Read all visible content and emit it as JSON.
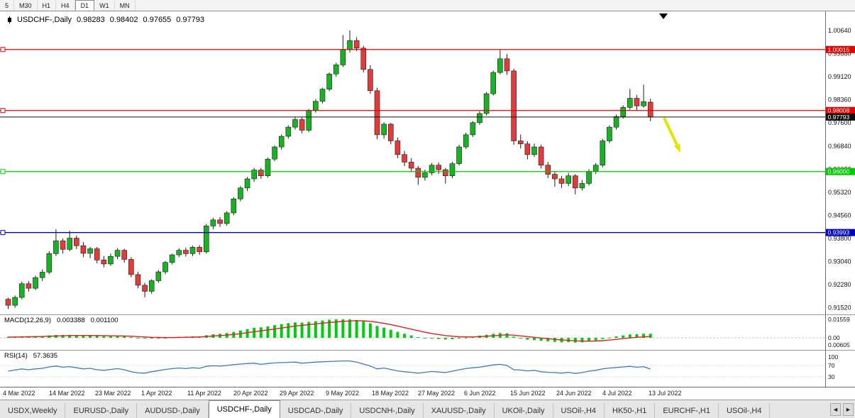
{
  "colors": {
    "candle_up": "#18b224",
    "candle_down": "#e23b3b",
    "candle_outline": "#1c1c1c",
    "macd_hist": "#00cc11",
    "macd_signal": "#dd2222",
    "rsi_line": "#3b7ac2",
    "arrow": "#e3e300",
    "axis_text": "#111111"
  },
  "toolbar": {
    "timeframes": [
      "5",
      "M30",
      "H1",
      "H4",
      "D1",
      "W1",
      "MN"
    ],
    "active_timeframe": "D1"
  },
  "chart": {
    "symbol_title": "USDCHF-,Daily",
    "open": "0.98283",
    "high": "0.98402",
    "low": "0.97655",
    "close": "0.97793",
    "price_axis_labels": [
      "1.00640",
      "0.99880",
      "0.99120",
      "0.98360",
      "0.97600",
      "0.96840",
      "0.96080",
      "0.95320",
      "0.94560",
      "0.93800",
      "0.93040",
      "0.92280",
      "0.91520"
    ],
    "levels": [
      {
        "price": 1.00015,
        "label": "1.00015",
        "color": "#e60000",
        "text_color": "#ffffff",
        "type": "resistance"
      },
      {
        "price": 0.98008,
        "label": "0.98008",
        "color": "#e60000",
        "text_color": "#ffffff",
        "type": "resistance"
      },
      {
        "price": 0.97793,
        "label": "0.97793",
        "color": "#101010",
        "text_color": "#ffffff",
        "type": "current-price"
      },
      {
        "price": 0.96,
        "label": "0.96000",
        "color": "#00cc00",
        "text_color": "#ffffff",
        "type": "support"
      },
      {
        "price": 0.93993,
        "label": "0.93993",
        "color": "#0000cc",
        "text_color": "#ffffff",
        "type": "support"
      }
    ]
  },
  "chart_data": {
    "type": "candlestick",
    "title": "USDCHF-,Daily",
    "symbol": "USDCHF",
    "timeframe": "Daily",
    "ylim": [
      0.9148,
      1.0064
    ],
    "x_axis_dates": [
      "4 Mar 2022",
      "14 Mar 2022",
      "23 Mar 2022",
      "1 Apr 2022",
      "11 Apr 2022",
      "20 Apr 2022",
      "29 Apr 2022",
      "9 May 2022",
      "18 May 2022",
      "27 May 2022",
      "6 Jun 2022",
      "15 Jun 2022",
      "24 Jun 2022",
      "4 Jul 2022",
      "13 Jul 2022"
    ],
    "candles_ohlc": [
      [
        0.918,
        0.9185,
        0.9148,
        0.916
      ],
      [
        0.916,
        0.9192,
        0.9152,
        0.9186
      ],
      [
        0.9186,
        0.9238,
        0.918,
        0.9231
      ],
      [
        0.9231,
        0.924,
        0.9205,
        0.9216
      ],
      [
        0.9216,
        0.9258,
        0.921,
        0.9251
      ],
      [
        0.9251,
        0.9278,
        0.924,
        0.9269
      ],
      [
        0.9269,
        0.9338,
        0.9262,
        0.933
      ],
      [
        0.933,
        0.941,
        0.9322,
        0.9372
      ],
      [
        0.9372,
        0.938,
        0.933,
        0.9344
      ],
      [
        0.9344,
        0.9405,
        0.9338,
        0.9381
      ],
      [
        0.9381,
        0.939,
        0.9345,
        0.9356
      ],
      [
        0.9356,
        0.9368,
        0.9318,
        0.9331
      ],
      [
        0.9331,
        0.9352,
        0.9315,
        0.9346
      ],
      [
        0.9346,
        0.9352,
        0.9298,
        0.9309
      ],
      [
        0.9309,
        0.9322,
        0.9285,
        0.9296
      ],
      [
        0.9296,
        0.933,
        0.929,
        0.9321
      ],
      [
        0.9321,
        0.9348,
        0.9312,
        0.9341
      ],
      [
        0.9341,
        0.9346,
        0.93,
        0.9311
      ],
      [
        0.9311,
        0.9318,
        0.9252,
        0.9261
      ],
      [
        0.9261,
        0.927,
        0.9216,
        0.9226
      ],
      [
        0.9226,
        0.9234,
        0.9186,
        0.9206
      ],
      [
        0.9206,
        0.9246,
        0.9198,
        0.9241
      ],
      [
        0.9241,
        0.9276,
        0.9234,
        0.927
      ],
      [
        0.927,
        0.9306,
        0.9262,
        0.9301
      ],
      [
        0.9301,
        0.933,
        0.9294,
        0.9326
      ],
      [
        0.9326,
        0.9348,
        0.9318,
        0.9341
      ],
      [
        0.9341,
        0.935,
        0.932,
        0.933
      ],
      [
        0.933,
        0.9356,
        0.9322,
        0.9351
      ],
      [
        0.9351,
        0.9358,
        0.9326,
        0.9336
      ],
      [
        0.9336,
        0.9428,
        0.933,
        0.9421
      ],
      [
        0.9421,
        0.9448,
        0.941,
        0.9441
      ],
      [
        0.9441,
        0.945,
        0.9418,
        0.9429
      ],
      [
        0.9429,
        0.947,
        0.9422,
        0.9464
      ],
      [
        0.9464,
        0.9516,
        0.9456,
        0.951
      ],
      [
        0.951,
        0.9552,
        0.9502,
        0.9546
      ],
      [
        0.9546,
        0.9582,
        0.9536,
        0.9576
      ],
      [
        0.9576,
        0.9612,
        0.9566,
        0.9605
      ],
      [
        0.9605,
        0.9612,
        0.9576,
        0.9586
      ],
      [
        0.9586,
        0.9646,
        0.958,
        0.9641
      ],
      [
        0.9641,
        0.9686,
        0.9634,
        0.9681
      ],
      [
        0.9681,
        0.9722,
        0.9672,
        0.9716
      ],
      [
        0.9716,
        0.9752,
        0.9708,
        0.9746
      ],
      [
        0.9746,
        0.9778,
        0.9738,
        0.9771
      ],
      [
        0.9771,
        0.9778,
        0.9726,
        0.9736
      ],
      [
        0.9736,
        0.9806,
        0.973,
        0.9801
      ],
      [
        0.9801,
        0.9838,
        0.9794,
        0.9831
      ],
      [
        0.9831,
        0.9876,
        0.9824,
        0.9871
      ],
      [
        0.9871,
        0.9926,
        0.9864,
        0.9921
      ],
      [
        0.9921,
        0.9958,
        0.9912,
        0.9951
      ],
      [
        0.9951,
        1.0049,
        0.9944,
        1.0001
      ],
      [
        1.0001,
        1.0064,
        0.9992,
        1.0031
      ],
      [
        1.0031,
        1.0042,
        0.9996,
        1.0006
      ],
      [
        1.0006,
        1.0014,
        0.9926,
        0.9936
      ],
      [
        0.9936,
        0.995,
        0.9856,
        0.9866
      ],
      [
        0.9866,
        0.9876,
        0.9706,
        0.9721
      ],
      [
        0.9721,
        0.9762,
        0.9708,
        0.9756
      ],
      [
        0.9756,
        0.976,
        0.969,
        0.9701
      ],
      [
        0.9701,
        0.9712,
        0.9644,
        0.9656
      ],
      [
        0.9656,
        0.9668,
        0.9618,
        0.9631
      ],
      [
        0.9631,
        0.9644,
        0.9598,
        0.9611
      ],
      [
        0.9611,
        0.9618,
        0.9556,
        0.9581
      ],
      [
        0.9581,
        0.9606,
        0.957,
        0.9596
      ],
      [
        0.9596,
        0.9628,
        0.9588,
        0.9621
      ],
      [
        0.9621,
        0.963,
        0.9592,
        0.9606
      ],
      [
        0.9606,
        0.9612,
        0.956,
        0.9586
      ],
      [
        0.9586,
        0.9632,
        0.9578,
        0.9626
      ],
      [
        0.9626,
        0.9688,
        0.962,
        0.9681
      ],
      [
        0.9681,
        0.9728,
        0.9674,
        0.9721
      ],
      [
        0.9721,
        0.9766,
        0.9714,
        0.9761
      ],
      [
        0.9761,
        0.9798,
        0.9754,
        0.9791
      ],
      [
        0.9791,
        0.9862,
        0.9784,
        0.9856
      ],
      [
        0.9856,
        0.9932,
        0.985,
        0.9926
      ],
      [
        0.9926,
        1.0,
        0.992,
        0.9971
      ],
      [
        0.9971,
        0.9986,
        0.9918,
        0.9931
      ],
      [
        0.9931,
        0.9938,
        0.9688,
        0.9701
      ],
      [
        0.9701,
        0.9722,
        0.9676,
        0.9691
      ],
      [
        0.9691,
        0.97,
        0.964,
        0.9656
      ],
      [
        0.9656,
        0.9692,
        0.9648,
        0.9681
      ],
      [
        0.9681,
        0.9688,
        0.961,
        0.9621
      ],
      [
        0.9621,
        0.9632,
        0.9578,
        0.9591
      ],
      [
        0.9591,
        0.96,
        0.955,
        0.9576
      ],
      [
        0.9576,
        0.9586,
        0.9546,
        0.9561
      ],
      [
        0.9561,
        0.9596,
        0.9552,
        0.9586
      ],
      [
        0.9586,
        0.9592,
        0.9525,
        0.9546
      ],
      [
        0.9546,
        0.9572,
        0.9538,
        0.9561
      ],
      [
        0.9561,
        0.9608,
        0.9554,
        0.9601
      ],
      [
        0.9601,
        0.9628,
        0.9592,
        0.9621
      ],
      [
        0.9621,
        0.9708,
        0.9614,
        0.9701
      ],
      [
        0.9701,
        0.9752,
        0.9694,
        0.9746
      ],
      [
        0.9746,
        0.9788,
        0.9738,
        0.9781
      ],
      [
        0.9781,
        0.9818,
        0.9774,
        0.9811
      ],
      [
        0.9811,
        0.9872,
        0.9804,
        0.9841
      ],
      [
        0.9841,
        0.9852,
        0.9801,
        0.9816
      ],
      [
        0.9816,
        0.9886,
        0.981,
        0.983
      ],
      [
        0.98283,
        0.98402,
        0.97655,
        0.97793
      ]
    ],
    "indicators": {
      "macd": {
        "label": "MACD(12,26,9)",
        "main_value": "0.003388",
        "signal_value": "0.001100",
        "axis_labels": [
          "0.01559",
          "0.00",
          "0.00605"
        ],
        "histogram": [
          0.0008,
          0.0009,
          0.0011,
          0.0012,
          0.0013,
          0.0015,
          0.002,
          0.0024,
          0.0024,
          0.0025,
          0.0023,
          0.002,
          0.0019,
          0.0016,
          0.0013,
          0.0012,
          0.0013,
          0.0011,
          0.0006,
          0.0001,
          -0.0004,
          -0.0005,
          -0.0003,
          0.0,
          0.0004,
          0.0008,
          0.001,
          0.0012,
          0.0012,
          0.0022,
          0.003,
          0.0034,
          0.004,
          0.005,
          0.0062,
          0.0074,
          0.0084,
          0.0088,
          0.0096,
          0.0106,
          0.0116,
          0.0124,
          0.013,
          0.0128,
          0.0134,
          0.014,
          0.0146,
          0.0152,
          0.0155,
          0.0156,
          0.0155,
          0.015,
          0.0138,
          0.0122,
          0.01,
          0.0086,
          0.0068,
          0.005,
          0.0034,
          0.002,
          0.0006,
          -0.0002,
          -0.0006,
          -0.001,
          -0.0014,
          -0.0012,
          -0.0006,
          0.0002,
          0.001,
          0.0018,
          0.0026,
          0.0034,
          0.004,
          0.0038,
          0.001,
          -0.0006,
          -0.0016,
          -0.002,
          -0.0026,
          -0.003,
          -0.0034,
          -0.0038,
          -0.0036,
          -0.004,
          -0.0038,
          -0.003,
          -0.0022,
          -0.001,
          0.0002,
          0.0012,
          0.002,
          0.0028,
          0.003,
          0.0034,
          0.0034
        ],
        "signal": [
          0.0006,
          0.0007,
          0.0008,
          0.0009,
          0.001,
          0.0011,
          0.0013,
          0.0015,
          0.0017,
          0.0019,
          0.002,
          0.002,
          0.002,
          0.0019,
          0.0018,
          0.0017,
          0.0016,
          0.0015,
          0.0013,
          0.001,
          0.0007,
          0.0004,
          0.0003,
          0.0002,
          0.0002,
          0.0003,
          0.0005,
          0.0006,
          0.0008,
          0.0011,
          0.0015,
          0.0019,
          0.0023,
          0.0028,
          0.0035,
          0.0043,
          0.0051,
          0.0059,
          0.0066,
          0.0074,
          0.0082,
          0.0091,
          0.0099,
          0.0105,
          0.0111,
          0.0117,
          0.0123,
          0.0129,
          0.0134,
          0.0139,
          0.0142,
          0.0144,
          0.0143,
          0.0139,
          0.0131,
          0.0122,
          0.0111,
          0.0099,
          0.0086,
          0.0073,
          0.006,
          0.0047,
          0.0036,
          0.0027,
          0.0019,
          0.0013,
          0.0009,
          0.0008,
          0.0008,
          0.001,
          0.0013,
          0.0017,
          0.0022,
          0.0025,
          0.0022,
          0.0016,
          0.001,
          0.0004,
          -0.0002,
          -0.0008,
          -0.0013,
          -0.0018,
          -0.0022,
          -0.0025,
          -0.0028,
          -0.0028,
          -0.0027,
          -0.0024,
          -0.0019,
          -0.0013,
          -0.0007,
          -0.0001,
          0.0004,
          0.0008,
          0.0011
        ]
      },
      "rsi": {
        "label": "RSI(14)",
        "value": "57.3635",
        "axis_labels": [
          "100",
          "70",
          "30"
        ],
        "levels": [
          100,
          70,
          30
        ],
        "series": [
          50,
          54,
          58,
          55,
          58,
          60,
          65,
          68,
          64,
          66,
          62,
          58,
          60,
          55,
          53,
          56,
          59,
          55,
          48,
          44,
          43,
          48,
          52,
          56,
          59,
          61,
          59,
          62,
          60,
          67,
          69,
          68,
          70,
          73,
          75,
          77,
          78,
          74,
          77,
          79,
          80,
          81,
          82,
          78,
          80,
          82,
          83,
          84,
          85,
          86,
          86,
          82,
          75,
          68,
          58,
          61,
          56,
          51,
          48,
          46,
          43,
          46,
          49,
          47,
          45,
          50,
          55,
          59,
          62,
          64,
          68,
          72,
          74,
          70,
          55,
          54,
          51,
          53,
          48,
          46,
          45,
          43,
          46,
          42,
          45,
          50,
          53,
          58,
          61,
          63,
          65,
          67,
          64,
          66,
          57.4
        ]
      }
    }
  },
  "tabs": {
    "scroll_left_icon": "◄",
    "scroll_right_icon": "►",
    "items": [
      {
        "label": "USDX,Weekly",
        "active": false
      },
      {
        "label": "EURUSD-,Daily",
        "active": false
      },
      {
        "label": "AUDUSD-,Daily",
        "active": false
      },
      {
        "label": "USDCHF-,Daily",
        "active": true
      },
      {
        "label": "USDCAD-,Daily",
        "active": false
      },
      {
        "label": "USDCNH-,Daily",
        "active": false
      },
      {
        "label": "XAUUSD-,Daily",
        "active": false
      },
      {
        "label": "UKOil-,Daily",
        "active": false
      },
      {
        "label": "USOil-,H4",
        "active": false
      },
      {
        "label": "HK50-,H1",
        "active": false
      },
      {
        "label": "EURCHF-,H1",
        "active": false
      },
      {
        "label": "USOil-,H4",
        "active": false
      }
    ]
  }
}
